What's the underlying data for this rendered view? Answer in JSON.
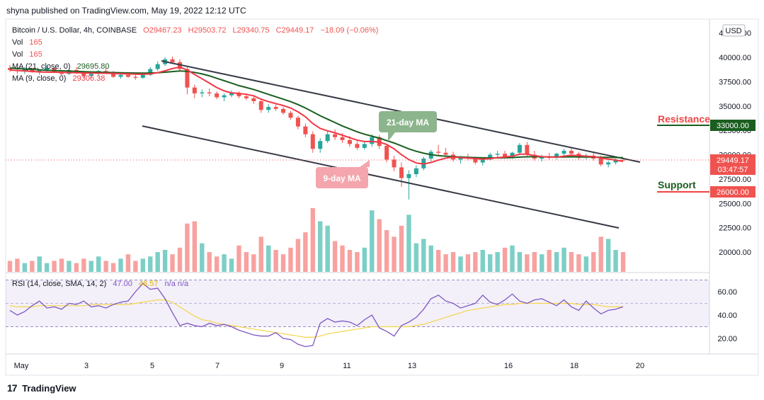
{
  "header": {
    "text": "shyna published on TradingView.com, May 19, 2022 12:12 UTC"
  },
  "legend": {
    "symbol": "Bitcoin / U.S. Dollar, 4h, COINBASE",
    "ohlc": {
      "o": "O29467.23",
      "h": "H29503.72",
      "l": "L29340.75",
      "c": "C29449.17",
      "chg": "−18.09 (−0.06%)"
    },
    "vol1": {
      "label": "Vol",
      "value": "165"
    },
    "vol2": {
      "label": "Vol",
      "value": "165"
    },
    "ma21": {
      "label": "MA (21, close, 0)",
      "value": "29695.80"
    },
    "ma9": {
      "label": "MA (9, close, 0)",
      "value": "29306.38"
    },
    "rsi": {
      "label": "RSI (14, close, SMA, 14, 2)",
      "value1": "47.00",
      "value2": "46.57",
      "na": "n/a  n/a"
    }
  },
  "price_axis": {
    "currency": "USD",
    "ticks": [
      "42500.00",
      "40000.00",
      "37500.00",
      "35000.00",
      "32500.00",
      "30000.00",
      "27500.00",
      "25000.00",
      "22500.00",
      "20000.00"
    ],
    "tick_values": [
      42500,
      40000,
      37500,
      35000,
      32500,
      30000,
      27500,
      25000,
      22500,
      20000
    ],
    "current_price": "29449.17",
    "countdown": "03:47:57",
    "resistance_price": "33000.00",
    "support_price": "26000.00"
  },
  "rsi_axis": {
    "ticks": [
      "60.00",
      "40.00",
      "20.00"
    ],
    "tick_values": [
      60,
      40,
      20
    ]
  },
  "time_axis": {
    "labels": [
      "May",
      "3",
      "5",
      "7",
      "9",
      "11",
      "13",
      "16",
      "18",
      "20"
    ]
  },
  "annotations": {
    "ma21_label": "21-day MA",
    "ma9_label": "9-day MA",
    "resistance": "Resistance",
    "support": "Support"
  },
  "footer": {
    "brand": "TradingView",
    "logo": "17"
  },
  "colors": {
    "up": "#26a69a",
    "down": "#ef5350",
    "ma21": "#1b5e20",
    "ma9": "#f23645",
    "rsi": "#7e57c2",
    "rsi_sma": "#f5d54a",
    "channel": "#363a45",
    "resistance": "#ef4444",
    "support": "#ef4444",
    "support_line": "#1b5e20",
    "ma21_box": "#8db58d",
    "ma9_box": "#f4a5ad"
  },
  "chart_data": {
    "type": "candlestick",
    "title": "Bitcoin / U.S. Dollar, 4h, COINBASE",
    "x_labels": [
      "May",
      "3",
      "5",
      "7",
      "9",
      "11",
      "13",
      "16",
      "18",
      "20"
    ],
    "ylim": [
      17500,
      43000
    ],
    "ohlc_series": [
      [
        38900,
        39200,
        38500,
        38700
      ],
      [
        38700,
        38900,
        38300,
        38600
      ],
      [
        38600,
        39000,
        38300,
        38800
      ],
      [
        38800,
        38950,
        38400,
        38500
      ],
      [
        38500,
        38800,
        38200,
        38700
      ],
      [
        38700,
        39100,
        38500,
        38900
      ],
      [
        38900,
        39000,
        38400,
        38500
      ],
      [
        38500,
        38700,
        38100,
        38300
      ],
      [
        38300,
        38800,
        38200,
        38700
      ],
      [
        38700,
        39000,
        38300,
        38400
      ],
      [
        38400,
        38600,
        37900,
        38100
      ],
      [
        38100,
        38500,
        37900,
        38300
      ],
      [
        38300,
        38700,
        38100,
        38600
      ],
      [
        38600,
        38900,
        38400,
        38500
      ],
      [
        38500,
        38600,
        37900,
        38000
      ],
      [
        38000,
        38400,
        37800,
        38200
      ],
      [
        38200,
        38500,
        37900,
        38000
      ],
      [
        38000,
        38200,
        37700,
        37900
      ],
      [
        37900,
        38300,
        37800,
        38200
      ],
      [
        38200,
        39000,
        38100,
        38800
      ],
      [
        38800,
        39600,
        38600,
        39300
      ],
      [
        39300,
        40000,
        39100,
        39800
      ],
      [
        39800,
        40100,
        39300,
        39500
      ],
      [
        39500,
        39800,
        38600,
        38800
      ],
      [
        38800,
        39000,
        36200,
        36900
      ],
      [
        36900,
        37200,
        35800,
        36300
      ],
      [
        36300,
        36700,
        35900,
        36400
      ],
      [
        36400,
        36800,
        36000,
        36300
      ],
      [
        36300,
        36500,
        35700,
        35900
      ],
      [
        35900,
        36300,
        35500,
        36100
      ],
      [
        36100,
        36600,
        35900,
        36300
      ],
      [
        36300,
        36500,
        35800,
        36000
      ],
      [
        36000,
        36300,
        35600,
        35800
      ],
      [
        35800,
        36000,
        35200,
        35500
      ],
      [
        35500,
        35600,
        34300,
        34600
      ],
      [
        34600,
        35200,
        34300,
        34900
      ],
      [
        34900,
        35300,
        34500,
        34700
      ],
      [
        34700,
        34900,
        34100,
        34300
      ],
      [
        34300,
        34500,
        33600,
        33800
      ],
      [
        33800,
        34000,
        32600,
        32900
      ],
      [
        32900,
        33200,
        31800,
        32100
      ],
      [
        32100,
        32400,
        30200,
        30600
      ],
      [
        30600,
        31700,
        30200,
        31400
      ],
      [
        31400,
        32400,
        31200,
        32100
      ],
      [
        32100,
        32600,
        31500,
        31800
      ],
      [
        31800,
        32200,
        31200,
        31500
      ],
      [
        31500,
        31900,
        30800,
        31100
      ],
      [
        31100,
        31400,
        30500,
        30700
      ],
      [
        30700,
        31300,
        30500,
        31100
      ],
      [
        31100,
        32100,
        30800,
        31800
      ],
      [
        31800,
        32000,
        30600,
        30900
      ],
      [
        30900,
        31100,
        29200,
        29500
      ],
      [
        29500,
        29900,
        28300,
        28700
      ],
      [
        28700,
        29200,
        26700,
        27600
      ],
      [
        27600,
        28400,
        25400,
        28000
      ],
      [
        28000,
        28900,
        27700,
        28600
      ],
      [
        28600,
        29800,
        28400,
        29600
      ],
      [
        29600,
        30500,
        29300,
        30300
      ],
      [
        30300,
        31000,
        29900,
        30200
      ],
      [
        30200,
        30700,
        29800,
        30000
      ],
      [
        30000,
        30300,
        29300,
        29500
      ],
      [
        29500,
        29900,
        29100,
        29700
      ],
      [
        29700,
        30100,
        29400,
        29600
      ],
      [
        29600,
        29800,
        29000,
        29200
      ],
      [
        29200,
        29700,
        28900,
        29500
      ],
      [
        29500,
        30200,
        29400,
        30000
      ],
      [
        30000,
        30400,
        29700,
        30100
      ],
      [
        30100,
        30400,
        29600,
        29800
      ],
      [
        29800,
        30300,
        29600,
        30200
      ],
      [
        30200,
        31200,
        30000,
        31000
      ],
      [
        31000,
        31300,
        29800,
        30000
      ],
      [
        30000,
        30400,
        29400,
        29600
      ],
      [
        29600,
        30000,
        29300,
        29800
      ],
      [
        29800,
        30200,
        29500,
        29700
      ],
      [
        29700,
        30200,
        29500,
        30100
      ],
      [
        30100,
        30600,
        29900,
        30400
      ],
      [
        30400,
        30800,
        30000,
        30100
      ],
      [
        30100,
        30300,
        29500,
        29700
      ],
      [
        29700,
        30100,
        29500,
        29900
      ],
      [
        29900,
        30200,
        29400,
        29600
      ],
      [
        29600,
        29900,
        28800,
        29000
      ],
      [
        29000,
        29400,
        28700,
        29200
      ],
      [
        29200,
        29600,
        29000,
        29500
      ],
      [
        29467,
        29504,
        29341,
        29449
      ]
    ],
    "volume_note": "volume bars in lower pane share candle colors",
    "ma9_values": [
      38700,
      38650,
      38600,
      38550,
      38500,
      38480,
      38470,
      38450,
      38430,
      38420,
      38400,
      38380,
      38370,
      38360,
      38340,
      38320,
      38300,
      38280,
      38260,
      38300,
      38420,
      38620,
      38850,
      39000,
      38700,
      38250,
      37800,
      37350,
      36900,
      36550,
      36350,
      36300,
      36200,
      36050,
      35700,
      35450,
      35250,
      35050,
      34800,
      34400,
      33900,
      33200,
      32700,
      32450,
      32250,
      32000,
      31750,
      31500,
      31350,
      31350,
      31300,
      31050,
      30600,
      30000,
      29500,
      29150,
      29050,
      29200,
      29450,
      29650,
      29750,
      29700,
      29650,
      29600,
      29550,
      29600,
      29700,
      29750,
      29850,
      30050,
      30050,
      29900,
      29800,
      29750,
      29750,
      29850,
      29950,
      29900,
      29850,
      29800,
      29650,
      29550,
      29450,
      29306
    ],
    "ma21_values": [
      38900,
      38850,
      38800,
      38760,
      38720,
      38680,
      38650,
      38620,
      38590,
      38560,
      38530,
      38500,
      38480,
      38460,
      38440,
      38420,
      38400,
      38390,
      38380,
      38390,
      38420,
      38470,
      38540,
      38600,
      38560,
      38450,
      38300,
      38100,
      37850,
      37600,
      37350,
      37100,
      36900,
      36700,
      36450,
      36200,
      35950,
      35700,
      35450,
      35150,
      34800,
      34400,
      34000,
      33650,
      33300,
      32950,
      32650,
      32350,
      32100,
      31900,
      31700,
      31450,
      31200,
      30900,
      30600,
      30350,
      30150,
      30000,
      29900,
      29850,
      29800,
      29750,
      29720,
      29700,
      29680,
      29670,
      29670,
      29680,
      29700,
      29750,
      29780,
      29790,
      29780,
      29770,
      29760,
      29770,
      29780,
      29770,
      29760,
      29750,
      29730,
      29720,
      29710,
      29696
    ],
    "volumes": [
      5,
      6,
      4,
      5,
      7,
      4,
      5,
      6,
      5,
      4,
      6,
      5,
      7,
      5,
      4,
      6,
      8,
      5,
      6,
      7,
      9,
      10,
      8,
      11,
      22,
      23,
      13,
      9,
      7,
      8,
      6,
      12,
      9,
      8,
      16,
      12,
      10,
      8,
      11,
      15,
      18,
      29,
      23,
      21,
      14,
      12,
      10,
      9,
      11,
      28,
      24,
      19,
      16,
      21,
      26,
      13,
      15,
      12,
      10,
      8,
      9,
      7,
      8,
      9,
      10,
      8,
      9,
      11,
      12,
      9,
      8,
      9,
      8,
      10,
      9,
      11,
      9,
      8,
      7,
      9,
      16,
      15,
      10,
      9
    ],
    "rsi_values": [
      44,
      40,
      43,
      48,
      52,
      46,
      47,
      45,
      50,
      49,
      52,
      47,
      48,
      46,
      49,
      51,
      52,
      60,
      67,
      62,
      63,
      54,
      42,
      31,
      33,
      31,
      30,
      33,
      31,
      32,
      30,
      27,
      25,
      23,
      22,
      22,
      25,
      20,
      19,
      15,
      13,
      14,
      33,
      37,
      34,
      35,
      34,
      31,
      36,
      40,
      29,
      26,
      22,
      31,
      34,
      38,
      45,
      54,
      57,
      52,
      50,
      46,
      48,
      50,
      57,
      51,
      49,
      53,
      58,
      52,
      50,
      53,
      54,
      51,
      48,
      53,
      47,
      44,
      52,
      46,
      41,
      44,
      45,
      47
    ],
    "rsi_sma_values": [
      48,
      47,
      47,
      47,
      48,
      48,
      48,
      48,
      48,
      48,
      48,
      49,
      49,
      49,
      49,
      49,
      49,
      50,
      51,
      52,
      53,
      53,
      51,
      47,
      43,
      39,
      36,
      35,
      33,
      32,
      31,
      30,
      29,
      28,
      27,
      26,
      25,
      24,
      23,
      22,
      21,
      21,
      22,
      24,
      25,
      26,
      27,
      28,
      29,
      30,
      30,
      30,
      30,
      30,
      30,
      31,
      32,
      34,
      36,
      38,
      40,
      42,
      44,
      45,
      46,
      47,
      48,
      49,
      49,
      50,
      50,
      50,
      50,
      50,
      50,
      50,
      50,
      49,
      49,
      49,
      48,
      47,
      47,
      47
    ],
    "rsi_ylim": [
      5,
      72
    ],
    "rsi_band": [
      30,
      70
    ],
    "levels": {
      "resistance": 33000,
      "support": 26000,
      "current": 29449.17
    }
  }
}
